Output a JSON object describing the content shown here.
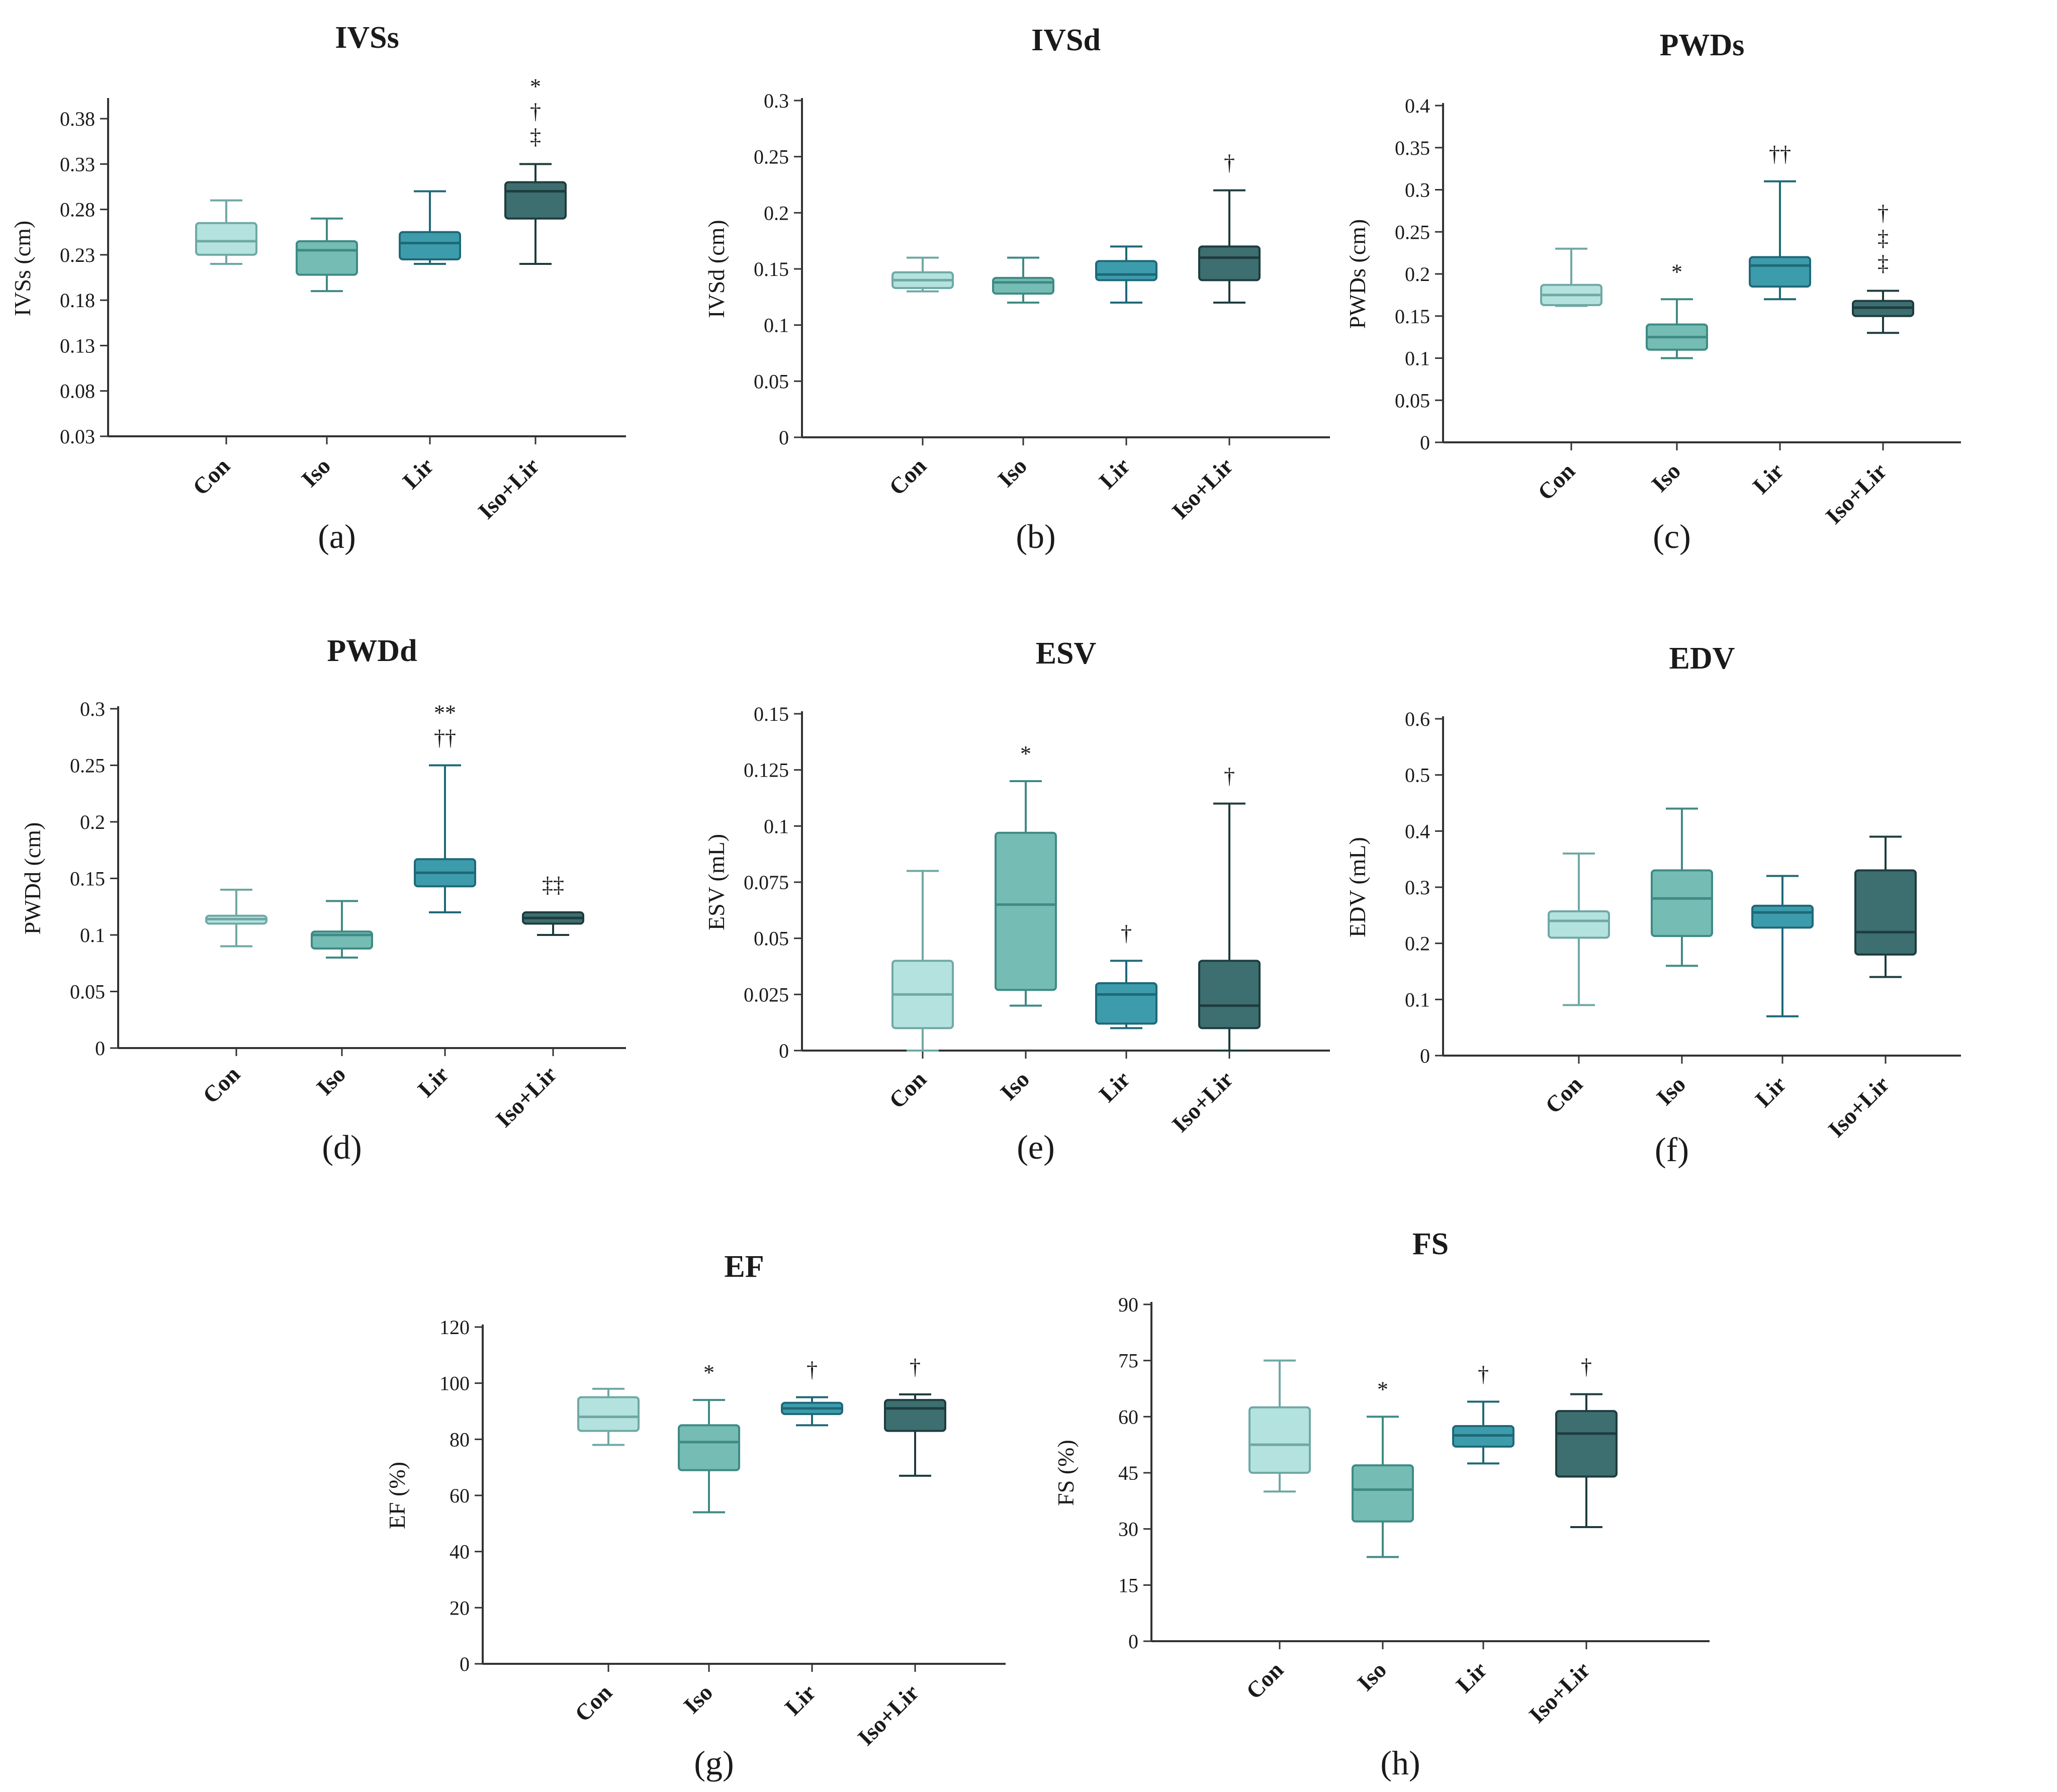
{
  "palette": {
    "Con": "#b4e2de",
    "Iso": "#74bcb4",
    "Lir": "#3d9cac",
    "Iso+Lir": "#3d6e70"
  },
  "edges": {
    "Con": "#6fa8a4",
    "Iso": "#3f8a84",
    "Lir": "#1f6878",
    "Iso+Lir": "#1e3c3e"
  },
  "chart_data": [
    {
      "type": "box",
      "title": "IVSs",
      "ylabel": "IVSs (cm)",
      "panel": "(a)",
      "categories": [
        "Con",
        "Iso",
        "Lir",
        "Iso+Lir"
      ],
      "ylim": [
        0.03,
        0.4
      ],
      "yticks": [
        0.03,
        0.08,
        0.13,
        0.18,
        0.23,
        0.28,
        0.33,
        0.38
      ],
      "ytick_labels": [
        "0.03",
        "0.08",
        "0.13",
        "0.18",
        "0.23",
        "0.28",
        "0.33",
        "0.38"
      ],
      "boxes": [
        {
          "min": 0.22,
          "q1": 0.23,
          "median": 0.245,
          "q3": 0.265,
          "max": 0.29
        },
        {
          "min": 0.19,
          "q1": 0.208,
          "median": 0.235,
          "q3": 0.245,
          "max": 0.27
        },
        {
          "min": 0.22,
          "q1": 0.225,
          "median": 0.243,
          "q3": 0.255,
          "max": 0.3
        },
        {
          "min": 0.22,
          "q1": 0.27,
          "median": 0.3,
          "q3": 0.31,
          "max": 0.33
        }
      ],
      "annotations": [
        [],
        [],
        [],
        [
          "*",
          "†",
          "‡"
        ]
      ]
    },
    {
      "type": "box",
      "title": "IVSd",
      "ylabel": "IVSd (cm)",
      "panel": "(b)",
      "categories": [
        "Con",
        "Iso",
        "Lir",
        "Iso+Lir"
      ],
      "ylim": [
        0,
        0.3
      ],
      "yticks": [
        0,
        0.05,
        0.1,
        0.15,
        0.2,
        0.25,
        0.3
      ],
      "ytick_labels": [
        "0",
        "0.05",
        "0.1",
        "0.15",
        "0.2",
        "0.25",
        "0.3"
      ],
      "boxes": [
        {
          "min": 0.13,
          "q1": 0.133,
          "median": 0.14,
          "q3": 0.147,
          "max": 0.16
        },
        {
          "min": 0.12,
          "q1": 0.128,
          "median": 0.138,
          "q3": 0.142,
          "max": 0.16
        },
        {
          "min": 0.12,
          "q1": 0.14,
          "median": 0.145,
          "q3": 0.157,
          "max": 0.17
        },
        {
          "min": 0.12,
          "q1": 0.14,
          "median": 0.16,
          "q3": 0.17,
          "max": 0.22
        }
      ],
      "annotations": [
        [],
        [],
        [],
        [
          "†"
        ]
      ]
    },
    {
      "type": "box",
      "title": "PWDs",
      "ylabel": "PWDs (cm)",
      "panel": "(c)",
      "categories": [
        "Con",
        "Iso",
        "Lir",
        "Iso+Lir"
      ],
      "ylim": [
        0,
        0.4
      ],
      "yticks": [
        0,
        0.05,
        0.1,
        0.15,
        0.2,
        0.25,
        0.3,
        0.35,
        0.4
      ],
      "ytick_labels": [
        "0",
        "0.05",
        "0.1",
        "0.15",
        "0.2",
        "0.25",
        "0.3",
        "0.35",
        "0.4"
      ],
      "boxes": [
        {
          "min": 0.162,
          "q1": 0.163,
          "median": 0.175,
          "q3": 0.187,
          "max": 0.23
        },
        {
          "min": 0.1,
          "q1": 0.11,
          "median": 0.125,
          "q3": 0.14,
          "max": 0.17
        },
        {
          "min": 0.17,
          "q1": 0.185,
          "median": 0.21,
          "q3": 0.22,
          "max": 0.31
        },
        {
          "min": 0.13,
          "q1": 0.15,
          "median": 0.16,
          "q3": 0.168,
          "max": 0.18
        }
      ],
      "annotations": [
        [],
        [
          "*"
        ],
        [
          "††"
        ],
        [
          "†",
          "‡",
          "‡"
        ]
      ]
    },
    {
      "type": "box",
      "title": "PWDd",
      "ylabel": "PWDd (cm)",
      "panel": "(d)",
      "categories": [
        "Con",
        "Iso",
        "Lir",
        "Iso+Lir"
      ],
      "ylim": [
        0,
        0.3
      ],
      "yticks": [
        0,
        0.05,
        0.1,
        0.15,
        0.2,
        0.25,
        0.3
      ],
      "ytick_labels": [
        "0",
        "0.05",
        "0.1",
        "0.15",
        "0.2",
        "0.25",
        "0.3"
      ],
      "boxes": [
        {
          "min": 0.09,
          "q1": 0.11,
          "median": 0.114,
          "q3": 0.117,
          "max": 0.14
        },
        {
          "min": 0.08,
          "q1": 0.088,
          "median": 0.1,
          "q3": 0.103,
          "max": 0.13
        },
        {
          "min": 0.12,
          "q1": 0.143,
          "median": 0.155,
          "q3": 0.167,
          "max": 0.25
        },
        {
          "min": 0.1,
          "q1": 0.11,
          "median": 0.115,
          "q3": 0.12,
          "max": 0.12
        }
      ],
      "annotations": [
        [],
        [],
        [
          "**",
          "††"
        ],
        [
          "‡‡"
        ]
      ]
    },
    {
      "type": "box",
      "title": "ESV",
      "ylabel": "ESV (mL)",
      "panel": "(e)",
      "categories": [
        "Con",
        "Iso",
        "Lir",
        "Iso+Lir"
      ],
      "ylim": [
        0,
        0.15
      ],
      "yticks": [
        0,
        0.025,
        0.05,
        0.075,
        0.1,
        0.125,
        0.15
      ],
      "ytick_labels": [
        "0",
        "0.025",
        "0.05",
        "0.075",
        "0.1",
        "0.125",
        "0.15"
      ],
      "boxes": [
        {
          "min": 0.0,
          "q1": 0.01,
          "median": 0.025,
          "q3": 0.04,
          "max": 0.08
        },
        {
          "min": 0.02,
          "q1": 0.027,
          "median": 0.065,
          "q3": 0.097,
          "max": 0.12
        },
        {
          "min": 0.01,
          "q1": 0.012,
          "median": 0.025,
          "q3": 0.03,
          "max": 0.04
        },
        {
          "min": 0.0,
          "q1": 0.01,
          "median": 0.02,
          "q3": 0.04,
          "max": 0.11
        }
      ],
      "annotations": [
        [],
        [
          "*"
        ],
        [
          "†"
        ],
        [
          "†"
        ]
      ]
    },
    {
      "type": "box",
      "title": "EDV",
      "ylabel": "EDV (mL)",
      "panel": "(f)",
      "categories": [
        "Con",
        "Iso",
        "Lir",
        "Iso+Lir"
      ],
      "ylim": [
        0,
        0.6
      ],
      "yticks": [
        0,
        0.1,
        0.2,
        0.3,
        0.4,
        0.5,
        0.6
      ],
      "ytick_labels": [
        "0",
        "0.1",
        "0.2",
        "0.3",
        "0.4",
        "0.5",
        "0.6"
      ],
      "boxes": [
        {
          "min": 0.09,
          "q1": 0.21,
          "median": 0.24,
          "q3": 0.257,
          "max": 0.36
        },
        {
          "min": 0.16,
          "q1": 0.213,
          "median": 0.28,
          "q3": 0.33,
          "max": 0.44
        },
        {
          "min": 0.07,
          "q1": 0.228,
          "median": 0.255,
          "q3": 0.267,
          "max": 0.32
        },
        {
          "min": 0.14,
          "q1": 0.18,
          "median": 0.22,
          "q3": 0.33,
          "max": 0.39
        }
      ],
      "annotations": [
        [],
        [],
        [],
        []
      ]
    },
    {
      "type": "box",
      "title": "EF",
      "ylabel": "EF (%)",
      "panel": "(g)",
      "categories": [
        "Con",
        "Iso",
        "Lir",
        "Iso+Lir"
      ],
      "ylim": [
        0,
        120
      ],
      "yticks": [
        0,
        20,
        40,
        60,
        80,
        100,
        120
      ],
      "ytick_labels": [
        "0",
        "20",
        "40",
        "60",
        "80",
        "100",
        "120"
      ],
      "boxes": [
        {
          "min": 78,
          "q1": 83,
          "median": 88,
          "q3": 95,
          "max": 98
        },
        {
          "min": 54,
          "q1": 69,
          "median": 79,
          "q3": 85,
          "max": 94
        },
        {
          "min": 85,
          "q1": 89,
          "median": 91,
          "q3": 93,
          "max": 95
        },
        {
          "min": 67,
          "q1": 83,
          "median": 91,
          "q3": 94,
          "max": 96
        }
      ],
      "annotations": [
        [],
        [
          "*"
        ],
        [
          "†"
        ],
        [
          "†"
        ]
      ]
    },
    {
      "type": "box",
      "title": "FS",
      "ylabel": "FS (%)",
      "panel": "(h)",
      "categories": [
        "Con",
        "Iso",
        "Lir",
        "Iso+Lir"
      ],
      "ylim": [
        0,
        90
      ],
      "yticks": [
        0,
        15,
        30,
        45,
        60,
        75,
        90
      ],
      "ytick_labels": [
        "0",
        "15",
        "30",
        "45",
        "60",
        "75",
        "90"
      ],
      "boxes": [
        {
          "min": 40,
          "q1": 45,
          "median": 52.5,
          "q3": 62.5,
          "max": 75
        },
        {
          "min": 22.5,
          "q1": 32,
          "median": 40.5,
          "q3": 47,
          "max": 60
        },
        {
          "min": 47.5,
          "q1": 52,
          "median": 55,
          "q3": 57.5,
          "max": 64
        },
        {
          "min": 30.5,
          "q1": 44,
          "median": 55.5,
          "q3": 61.5,
          "max": 66
        }
      ],
      "annotations": [
        [],
        [
          "*"
        ],
        [
          "†"
        ],
        [
          "†"
        ]
      ]
    }
  ]
}
